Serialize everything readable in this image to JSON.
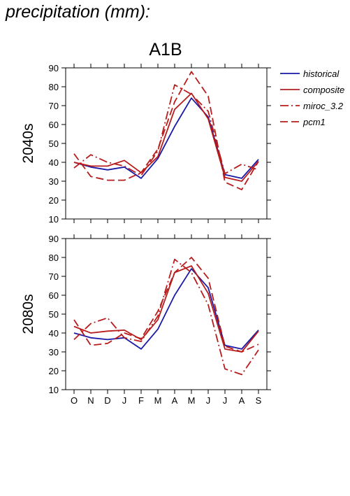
{
  "page": {
    "title": "precipitation (mm):"
  },
  "colors": {
    "historical": "#1a1aa6",
    "scenario": "#b81c1c",
    "axis": "#000000"
  },
  "chart_data": {
    "type": "line",
    "title": "A1B",
    "months": [
      "O",
      "N",
      "D",
      "J",
      "F",
      "M",
      "A",
      "M",
      "J",
      "J",
      "A",
      "S"
    ],
    "ylim": [
      10,
      90
    ],
    "yticks": [
      10,
      20,
      30,
      40,
      50,
      60,
      70,
      80,
      90
    ],
    "legend_position": "right",
    "legend": [
      {
        "name": "historical",
        "color": "#1a1aa6",
        "dash": "solid"
      },
      {
        "name": "composite",
        "color": "#b81c1c",
        "dash": "solid"
      },
      {
        "name": "miroc_3.2",
        "color": "#b81c1c",
        "dash": "dashdot"
      },
      {
        "name": "pcm1",
        "color": "#b81c1c",
        "dash": "dashed"
      }
    ],
    "panels": [
      {
        "label": "2040s",
        "series": [
          {
            "name": "historical",
            "values": [
              40,
              37.5,
              36,
              37.5,
              31.5,
              42,
              59,
              74,
              64,
              33.5,
              31.5,
              41.5
            ]
          },
          {
            "name": "composite",
            "values": [
              40,
              38,
              38,
              41,
              34.5,
              43,
              68,
              76.5,
              63,
              32,
              30,
              40.5
            ]
          },
          {
            "name": "miroc_3.2",
            "values": [
              37,
              44,
              40,
              38,
              33,
              46,
              81,
              76,
              67,
              34,
              39,
              36
            ]
          },
          {
            "name": "pcm1",
            "values": [
              44.5,
              32.5,
              30.5,
              30.5,
              34.5,
              47,
              72,
              88,
              75,
              29.5,
              25.5,
              40.5
            ]
          }
        ]
      },
      {
        "label": "2080s",
        "series": [
          {
            "name": "historical",
            "values": [
              40,
              37.5,
              36.5,
              37.5,
              31.5,
              42,
              60,
              74,
              64,
              33.5,
              31.5,
              41.5
            ]
          },
          {
            "name": "composite",
            "values": [
              43.5,
              40,
              41,
              41.5,
              36.5,
              47,
              72,
              75.5,
              61,
              31.5,
              30,
              41
            ]
          },
          {
            "name": "miroc_3.2",
            "values": [
              36.5,
              45,
              48,
              37.5,
              35.5,
              49,
              79,
              72,
              55,
              21,
              18,
              31
            ]
          },
          {
            "name": "pcm1",
            "values": [
              47,
              33.5,
              34.5,
              40,
              37,
              51.5,
              72,
              80,
              69,
              33,
              30,
              34
            ]
          }
        ]
      }
    ]
  }
}
